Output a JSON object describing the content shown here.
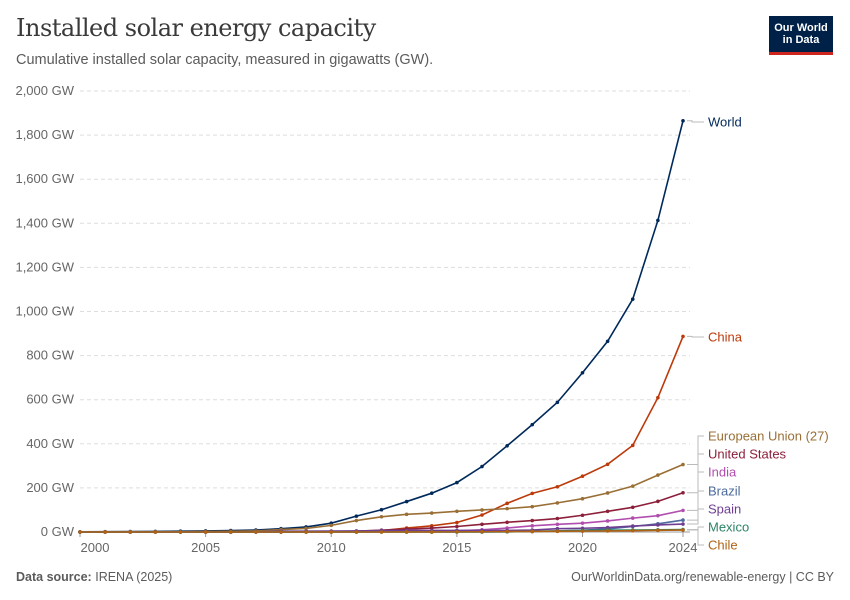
{
  "header": {
    "title": "Installed solar energy capacity",
    "subtitle": "Cumulative installed solar capacity, measured in gigawatts (GW).",
    "logo": "Our World in Data"
  },
  "footer": {
    "source_label": "Data source:",
    "source": "IRENA (2025)",
    "url": "OurWorldinData.org/renewable-energy | CC BY"
  },
  "chart_data": {
    "type": "line",
    "title": "Installed solar energy capacity",
    "ylim": [
      0,
      2000
    ],
    "y_ticks": [
      "0 GW",
      "200 GW",
      "400 GW",
      "600 GW",
      "800 GW",
      "1,000 GW",
      "1,200 GW",
      "1,400 GW",
      "1,600 GW",
      "1,800 GW",
      "2,000 GW"
    ],
    "x_ticks": [
      "2000",
      "2005",
      "2010",
      "2015",
      "2020",
      "2024"
    ],
    "grid": "horizontal dashed",
    "legend": "right, labels at line ends",
    "x": [
      2000,
      2001,
      2002,
      2003,
      2004,
      2005,
      2006,
      2007,
      2008,
      2009,
      2010,
      2011,
      2012,
      2013,
      2014,
      2015,
      2016,
      2017,
      2018,
      2019,
      2020,
      2021,
      2022,
      2023,
      2024
    ],
    "series": [
      {
        "name": "World",
        "color": "#00295b",
        "values": [
          1,
          1.3,
          2,
          2.8,
          3.9,
          5,
          6.5,
          9,
          15,
          23,
          40,
          72,
          101,
          138,
          176,
          224,
          297,
          391,
          487,
          588,
          722,
          865,
          1056,
          1413,
          1865
        ]
      },
      {
        "name": "China",
        "color": "#bc3a0a",
        "values": [
          0,
          0,
          0,
          0,
          0,
          0,
          0,
          0,
          0.1,
          0.4,
          1,
          3,
          6.7,
          17.7,
          28,
          43,
          77,
          130,
          175,
          205,
          253,
          307,
          393,
          609,
          887
        ]
      },
      {
        "name": "European Union (27)",
        "color": "#9a6f36",
        "values": [
          0.1,
          0.2,
          0.3,
          0.5,
          1,
          2,
          3,
          5,
          11,
          16,
          30,
          52,
          69,
          80,
          86,
          94,
          100,
          106,
          115,
          132,
          151,
          177,
          208,
          258,
          306
        ]
      },
      {
        "name": "United States",
        "color": "#8c1f3a",
        "values": [
          0,
          0,
          0,
          0,
          0.1,
          0.2,
          0.3,
          0.5,
          0.8,
          1.2,
          2,
          4,
          8,
          13,
          18,
          25,
          35,
          44,
          52,
          61,
          76,
          94,
          112,
          139,
          178
        ]
      },
      {
        "name": "India",
        "color": "#b14dae",
        "values": [
          0,
          0,
          0,
          0,
          0,
          0,
          0,
          0,
          0,
          0,
          0.1,
          0.5,
          1,
          2,
          3.4,
          5.6,
          10,
          18,
          28,
          35,
          40,
          50,
          63,
          74,
          98
        ]
      },
      {
        "name": "Brazil",
        "color": "#4c6a9c",
        "values": [
          0,
          0,
          0,
          0,
          0,
          0,
          0,
          0,
          0,
          0,
          0,
          0,
          0,
          0,
          0,
          0,
          0.1,
          1,
          2.5,
          4.6,
          8,
          14,
          25,
          37,
          54
        ]
      },
      {
        "name": "Spain",
        "color": "#6d3e91",
        "values": [
          0,
          0,
          0,
          0,
          0,
          0.1,
          0.2,
          0.7,
          3.5,
          3.6,
          4.5,
          5,
          6.5,
          7,
          7,
          7,
          7,
          7,
          9,
          15,
          17,
          20,
          27,
          32,
          36
        ]
      },
      {
        "name": "Mexico",
        "color": "#2c8465",
        "values": [
          0,
          0,
          0,
          0,
          0,
          0,
          0,
          0,
          0,
          0,
          0,
          0,
          0,
          0.1,
          0.2,
          0.3,
          0.4,
          1,
          3,
          5,
          7,
          8,
          9,
          10,
          11
        ]
      },
      {
        "name": "Chile",
        "color": "#b16214",
        "values": [
          0,
          0,
          0,
          0,
          0,
          0,
          0,
          0,
          0,
          0,
          0,
          0,
          0,
          0.1,
          0.4,
          0.6,
          1.1,
          2,
          2.5,
          3,
          4,
          5,
          6,
          7.5,
          9
        ]
      }
    ]
  }
}
